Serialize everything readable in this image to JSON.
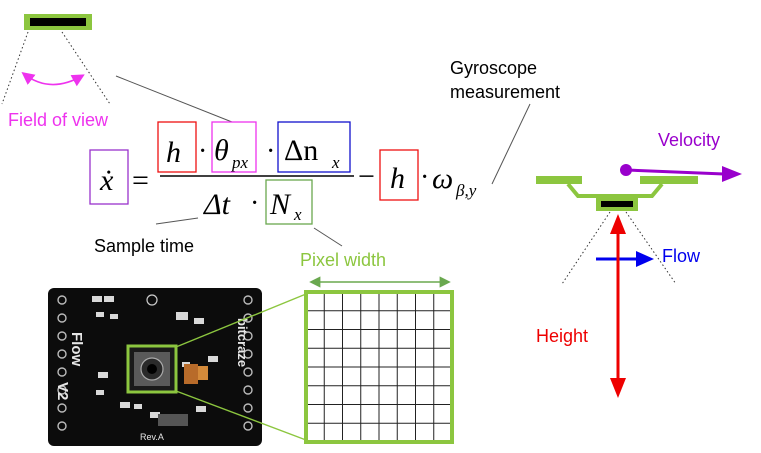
{
  "labels": {
    "field_of_view": "Field of view",
    "gyroscope_line1": "Gyroscope",
    "gyroscope_line2": "measurement",
    "sample_time": "Sample time",
    "pixel_width": "Pixel width",
    "velocity": "Velocity",
    "flow": "Flow",
    "height": "Height"
  },
  "equation": {
    "lhs": "ẋ",
    "equals": "=",
    "h": "h",
    "dot1": "·",
    "theta": "θ",
    "theta_sub": "px",
    "dot2": "·",
    "delta_n": "Δn",
    "delta_n_sub": "x",
    "dt": "Δt",
    "dot3": "·",
    "N": "N",
    "N_sub": "x",
    "minus": "−",
    "h2": "h",
    "dot4": "·",
    "omega": "ω",
    "omega_sub": "β,y"
  },
  "board": {
    "silk_flow": "Flow",
    "silk_v2": "V2",
    "silk_brand": "bitcraze",
    "silk_rev": "Rev.A"
  },
  "grid": {
    "rows": 8,
    "cols": 8
  },
  "colors": {
    "magenta": "#ee33ee",
    "purple": "#9933cc",
    "red": "#ee1111",
    "blue": "#1111cc",
    "green": "#8cc63f",
    "velocity": "#9900cc",
    "flow": "#0000ee",
    "height": "#ee0000"
  }
}
